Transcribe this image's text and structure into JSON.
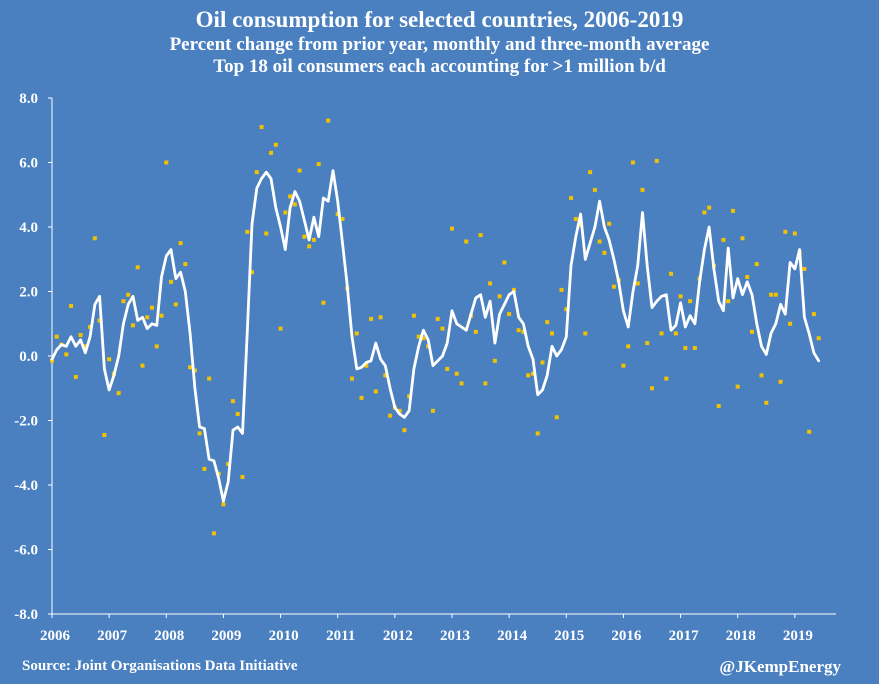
{
  "chart_data": {
    "type": "line+scatter",
    "title": "Oil consumption for selected countries, 2006-2019",
    "subtitle1": "Percent change from prior year, monthly and three-month average",
    "subtitle2": "Top 18 oil consumers each accounting for >1 million b/d",
    "xlabel": "",
    "ylabel": "",
    "ylim": [
      -8.0,
      8.0
    ],
    "y_ticks": [
      "8.0",
      "6.0",
      "4.0",
      "2.0",
      "0.0",
      "-2.0",
      "-4.0",
      "-6.0",
      "-8.0"
    ],
    "x_ticks": [
      "2006",
      "2007",
      "2008",
      "2009",
      "2010",
      "2011",
      "2012",
      "2013",
      "2014",
      "2015",
      "2016",
      "2017",
      "2018",
      "2019"
    ],
    "xlim": [
      2006.0,
      2019.72
    ],
    "grid": false,
    "series": [
      {
        "name": "Monthly",
        "style": "points",
        "color": "#f2c200",
        "x_start": 2006.0,
        "x_step": 0.0833333,
        "values": [
          -0.15,
          0.6,
          0.35,
          0.05,
          1.55,
          -0.65,
          0.65,
          0.3,
          0.9,
          3.65,
          1.1,
          -2.45,
          -0.1,
          -0.55,
          -1.15,
          1.7,
          1.9,
          0.95,
          2.75,
          -0.3,
          1.2,
          1.5,
          0.3,
          1.25,
          6.0,
          2.3,
          1.6,
          3.5,
          2.85,
          -0.35,
          -0.45,
          -2.4,
          -3.5,
          -0.7,
          -5.5,
          -3.65,
          -4.6,
          -3.35,
          -1.4,
          -1.8,
          -3.75,
          3.85,
          2.6,
          5.7,
          7.1,
          3.8,
          6.3,
          6.55,
          0.85,
          4.45,
          4.95,
          4.7,
          5.75,
          3.7,
          3.4,
          3.6,
          5.95,
          1.65,
          7.3,
          5.6,
          4.4,
          4.25,
          2.1,
          -0.7,
          0.7,
          -1.3,
          -0.3,
          1.15,
          -1.1,
          1.2,
          -0.6,
          -1.85,
          -1.6,
          -1.7,
          -2.3,
          -1.25,
          1.25,
          0.6,
          0.55,
          0.3,
          -1.7,
          1.15,
          0.85,
          -0.4,
          3.95,
          -0.55,
          -0.85,
          3.55,
          1.25,
          0.75,
          3.75,
          -0.85,
          2.25,
          -0.15,
          1.85,
          2.9,
          1.3,
          2.05,
          0.8,
          0.75,
          -0.6,
          -0.55,
          -2.4,
          -0.2,
          1.05,
          0.7,
          -1.9,
          2.05,
          1.45,
          4.9,
          4.25,
          4.05,
          0.7,
          5.7,
          5.15,
          3.55,
          3.2,
          4.1,
          2.15,
          2.35,
          -0.3,
          0.3,
          6.0,
          2.25,
          5.15,
          0.4,
          -1.0,
          6.05,
          0.7,
          -0.7,
          2.55,
          0.7,
          1.85,
          0.25,
          1.7,
          0.25,
          2.4,
          4.45,
          4.6,
          2.8,
          -1.55,
          3.6,
          1.7,
          4.5,
          -0.95,
          3.65,
          2.45,
          0.75,
          2.85,
          -0.6,
          -1.45,
          1.9,
          1.9,
          -0.8,
          3.85,
          1.0,
          3.8,
          3.2,
          2.7,
          -2.35,
          1.3,
          0.55
        ]
      },
      {
        "name": "Three-month average",
        "style": "line",
        "color": "#ffffff",
        "x_start": 2006.0,
        "x_step": 0.0833333,
        "values": [
          -0.1,
          0.2,
          0.35,
          0.3,
          0.6,
          0.3,
          0.5,
          0.1,
          0.6,
          1.6,
          1.85,
          -0.4,
          -1.05,
          -0.6,
          0.0,
          1.0,
          1.6,
          1.85,
          1.1,
          1.2,
          0.85,
          1.0,
          0.95,
          2.45,
          3.1,
          3.3,
          2.4,
          2.6,
          2.0,
          0.7,
          -1.0,
          -2.2,
          -2.25,
          -3.2,
          -3.25,
          -3.8,
          -4.5,
          -3.9,
          -2.3,
          -2.2,
          -2.4,
          0.7,
          4.1,
          5.2,
          5.5,
          5.7,
          5.5,
          4.6,
          4.0,
          3.3,
          4.6,
          5.1,
          4.8,
          4.2,
          3.6,
          4.3,
          3.7,
          4.9,
          4.8,
          5.75,
          4.8,
          3.5,
          2.2,
          0.6,
          -0.4,
          -0.35,
          -0.2,
          -0.15,
          0.4,
          -0.1,
          -0.3,
          -1.0,
          -1.6,
          -1.8,
          -1.9,
          -1.7,
          -0.4,
          0.3,
          0.8,
          0.5,
          -0.3,
          -0.15,
          0.0,
          0.4,
          1.4,
          1.0,
          0.9,
          0.8,
          1.3,
          1.8,
          1.9,
          1.2,
          1.7,
          0.4,
          1.3,
          1.6,
          1.9,
          2.0,
          1.2,
          1.0,
          0.3,
          -0.1,
          -1.2,
          -1.05,
          -0.6,
          0.3,
          0.0,
          0.2,
          0.6,
          2.8,
          3.7,
          4.4,
          3.0,
          3.5,
          4.0,
          4.8,
          4.0,
          3.6,
          3.0,
          2.3,
          1.4,
          0.9,
          2.0,
          2.8,
          4.45,
          2.8,
          1.5,
          1.7,
          1.85,
          1.9,
          0.8,
          0.95,
          1.65,
          0.9,
          1.25,
          1.0,
          2.3,
          3.3,
          4.0,
          2.7,
          1.7,
          1.4,
          3.35,
          1.8,
          2.4,
          1.9,
          2.3,
          1.9,
          1.0,
          0.3,
          0.05,
          0.7,
          1.0,
          1.6,
          1.3,
          2.9,
          2.7,
          3.3,
          1.2,
          0.7,
          0.1,
          -0.15
        ]
      }
    ]
  },
  "footer": {
    "source": "Source: Joint Organisations Data Initiative",
    "credit": "@JKempEnergy"
  }
}
